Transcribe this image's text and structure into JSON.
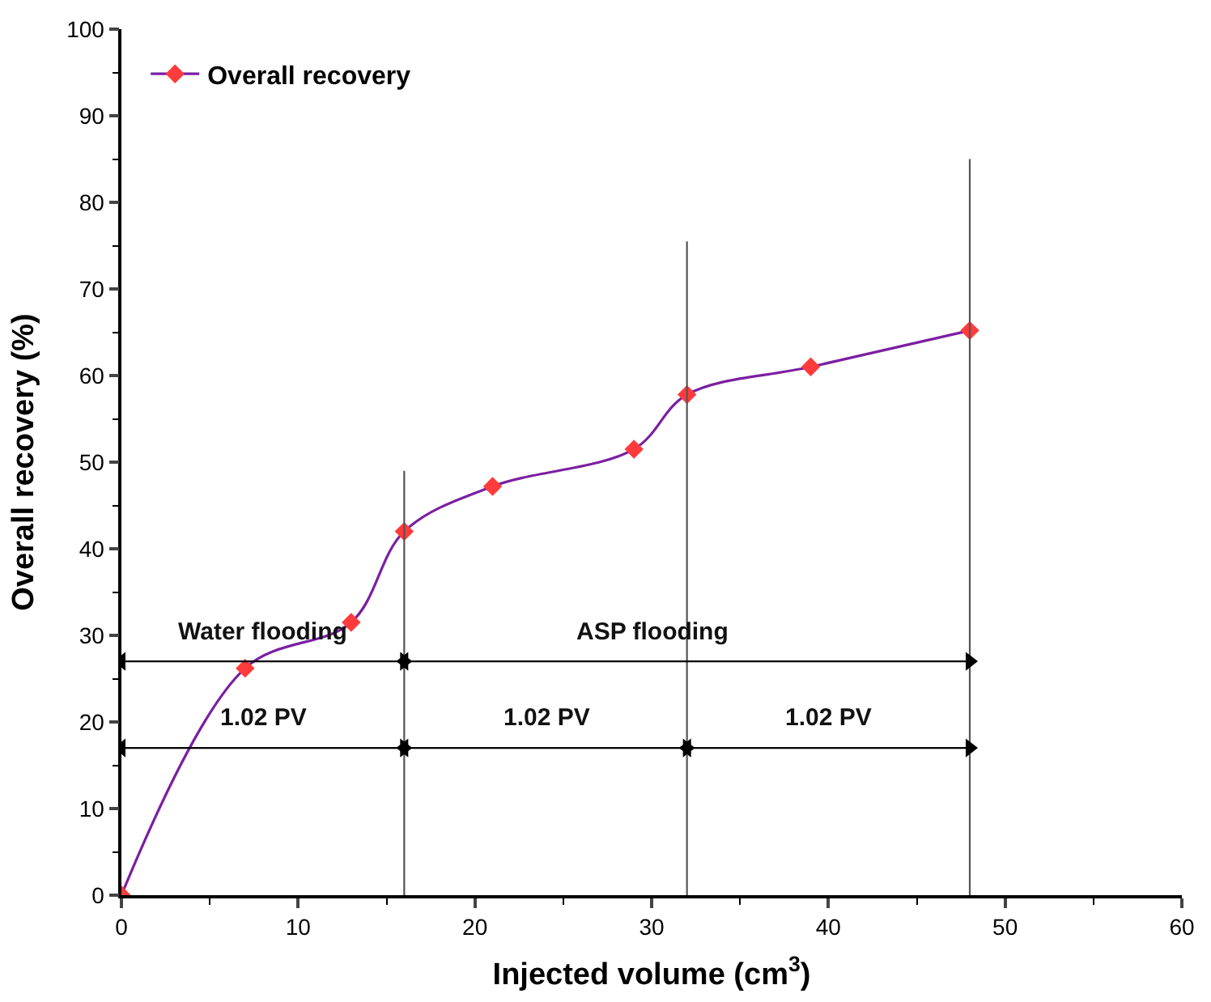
{
  "chart_data": {
    "type": "line",
    "xlabel": "Injected volume (cm$^{3}$)",
    "ylabel": "Overall recovery (%)",
    "xlim": [
      0,
      60
    ],
    "xticks": [
      0,
      10,
      20,
      30,
      40,
      50,
      60
    ],
    "ylim": [
      0,
      100
    ],
    "yticks": [
      0,
      10,
      20,
      30,
      40,
      50,
      60,
      70,
      80,
      90,
      100
    ],
    "legend": "top left",
    "series": [
      {
        "name": "Overall recovery",
        "color": "#7b1fa2",
        "marker": "diamond",
        "colors": [
          "#ff3b3b",
          "#ff3b3b",
          "#ff3b3b",
          "#ff3b3b",
          "#ff3b3b",
          "#ff3b3b",
          "#ff3b3b",
          "#ff3b3b",
          "#ff3b3b"
        ],
        "x": [
          0,
          7,
          13,
          16,
          21,
          29,
          32,
          39,
          48
        ],
        "values": [
          0,
          26.2,
          31.5,
          42,
          47.2,
          51.5,
          57.8,
          61,
          65.2
        ]
      },
      {
        "color": "#555555",
        "marker": "none",
        "x": [
          16,
          16
        ],
        "values": [
          0,
          49
        ]
      },
      {
        "color": "#555555",
        "marker": "none",
        "x": [
          32,
          32
        ],
        "values": [
          0,
          75.5
        ]
      },
      {
        "color": "#555555",
        "marker": "none",
        "x": [
          48,
          48
        ],
        "values": [
          0,
          85
        ]
      },
      {
        "color": "#000000",
        "marker": "triangle",
        "x": [
          0,
          16
        ],
        "values": [
          27,
          27
        ]
      },
      {
        "color": "#000000",
        "marker": "triangle",
        "x": [
          16,
          48
        ],
        "values": [
          27,
          27
        ]
      },
      {
        "color": "#000000",
        "marker": "triangle",
        "x": [
          0,
          16
        ],
        "values": [
          17,
          17
        ]
      },
      {
        "color": "#000000",
        "marker": "triangle",
        "x": [
          16,
          32
        ],
        "values": [
          17,
          17
        ]
      },
      {
        "color": "#000000",
        "marker": "triangle",
        "x": [
          32,
          48
        ],
        "values": [
          17,
          17
        ]
      }
    ],
    "annotations": [
      {
        "text": "Water flooding",
        "x": 8,
        "y": 27
      },
      {
        "text": "ASP flooding",
        "x": 30,
        "y": 27
      },
      {
        "text": "1.02 PV",
        "x": 8,
        "y": 17
      },
      {
        "text": "1.02 PV",
        "x": 24,
        "y": 17
      },
      {
        "text": "1.02 PV",
        "x": 40,
        "y": 17
      }
    ]
  }
}
